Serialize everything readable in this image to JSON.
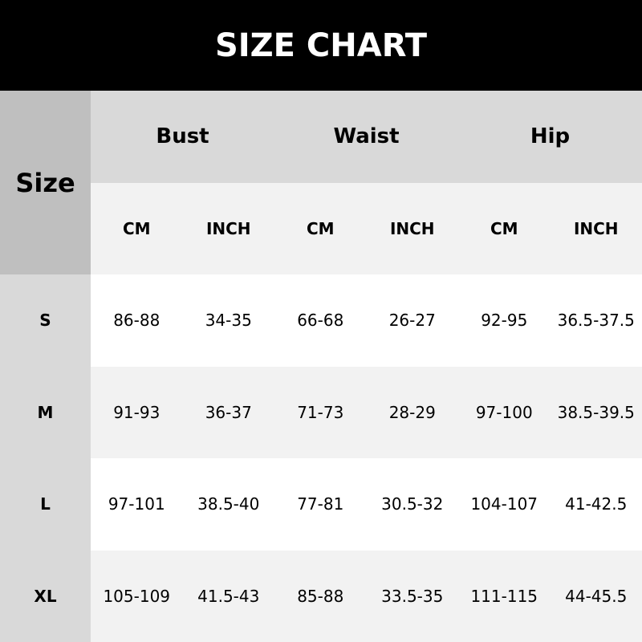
{
  "title": "SIZE CHART",
  "size_label": "Size",
  "groups": [
    "Bust",
    "Waist",
    "Hip"
  ],
  "units": [
    "CM",
    "INCH",
    "CM",
    "INCH",
    "CM",
    "INCH"
  ],
  "rows": [
    {
      "size": "S",
      "values": [
        "86-88",
        "34-35",
        "66-68",
        "26-27",
        "92-95",
        "36.5-37.5"
      ]
    },
    {
      "size": "M",
      "values": [
        "91-93",
        "36-37",
        "71-73",
        "28-29",
        "97-100",
        "38.5-39.5"
      ]
    },
    {
      "size": "L",
      "values": [
        "97-101",
        "38.5-40",
        "77-81",
        "30.5-32",
        "104-107",
        "41-42.5"
      ]
    },
    {
      "size": "XL",
      "values": [
        "105-109",
        "41.5-43",
        "85-88",
        "33.5-35",
        "111-115",
        "44-45.5"
      ]
    }
  ]
}
